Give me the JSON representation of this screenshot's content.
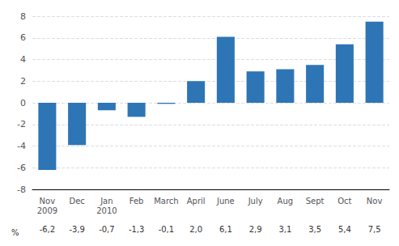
{
  "chart_data": {
    "type": "bar",
    "categories": [
      "Nov\n2009",
      "Dec",
      "Jan\n2010",
      "Feb",
      "March",
      "April",
      "June",
      "July",
      "Aug",
      "Sept",
      "Oct",
      "Nov"
    ],
    "values": [
      -6.2,
      -3.9,
      -0.7,
      -1.3,
      -0.1,
      2.0,
      6.1,
      2.9,
      3.1,
      3.5,
      5.4,
      7.5
    ],
    "value_labels": [
      "-6,2",
      "-3,9",
      "-0,7",
      "-1,3",
      "-0,1",
      "2,0",
      "6,1",
      "2,9",
      "3,1",
      "3,5",
      "5,4",
      "7,5"
    ],
    "annotations": [
      "%"
    ],
    "color": "#2E75B6",
    "ylim": [
      -8,
      8
    ],
    "yticks": [
      -8,
      -6,
      -4,
      -2,
      0,
      2,
      4,
      6,
      8
    ],
    "grid": true
  }
}
